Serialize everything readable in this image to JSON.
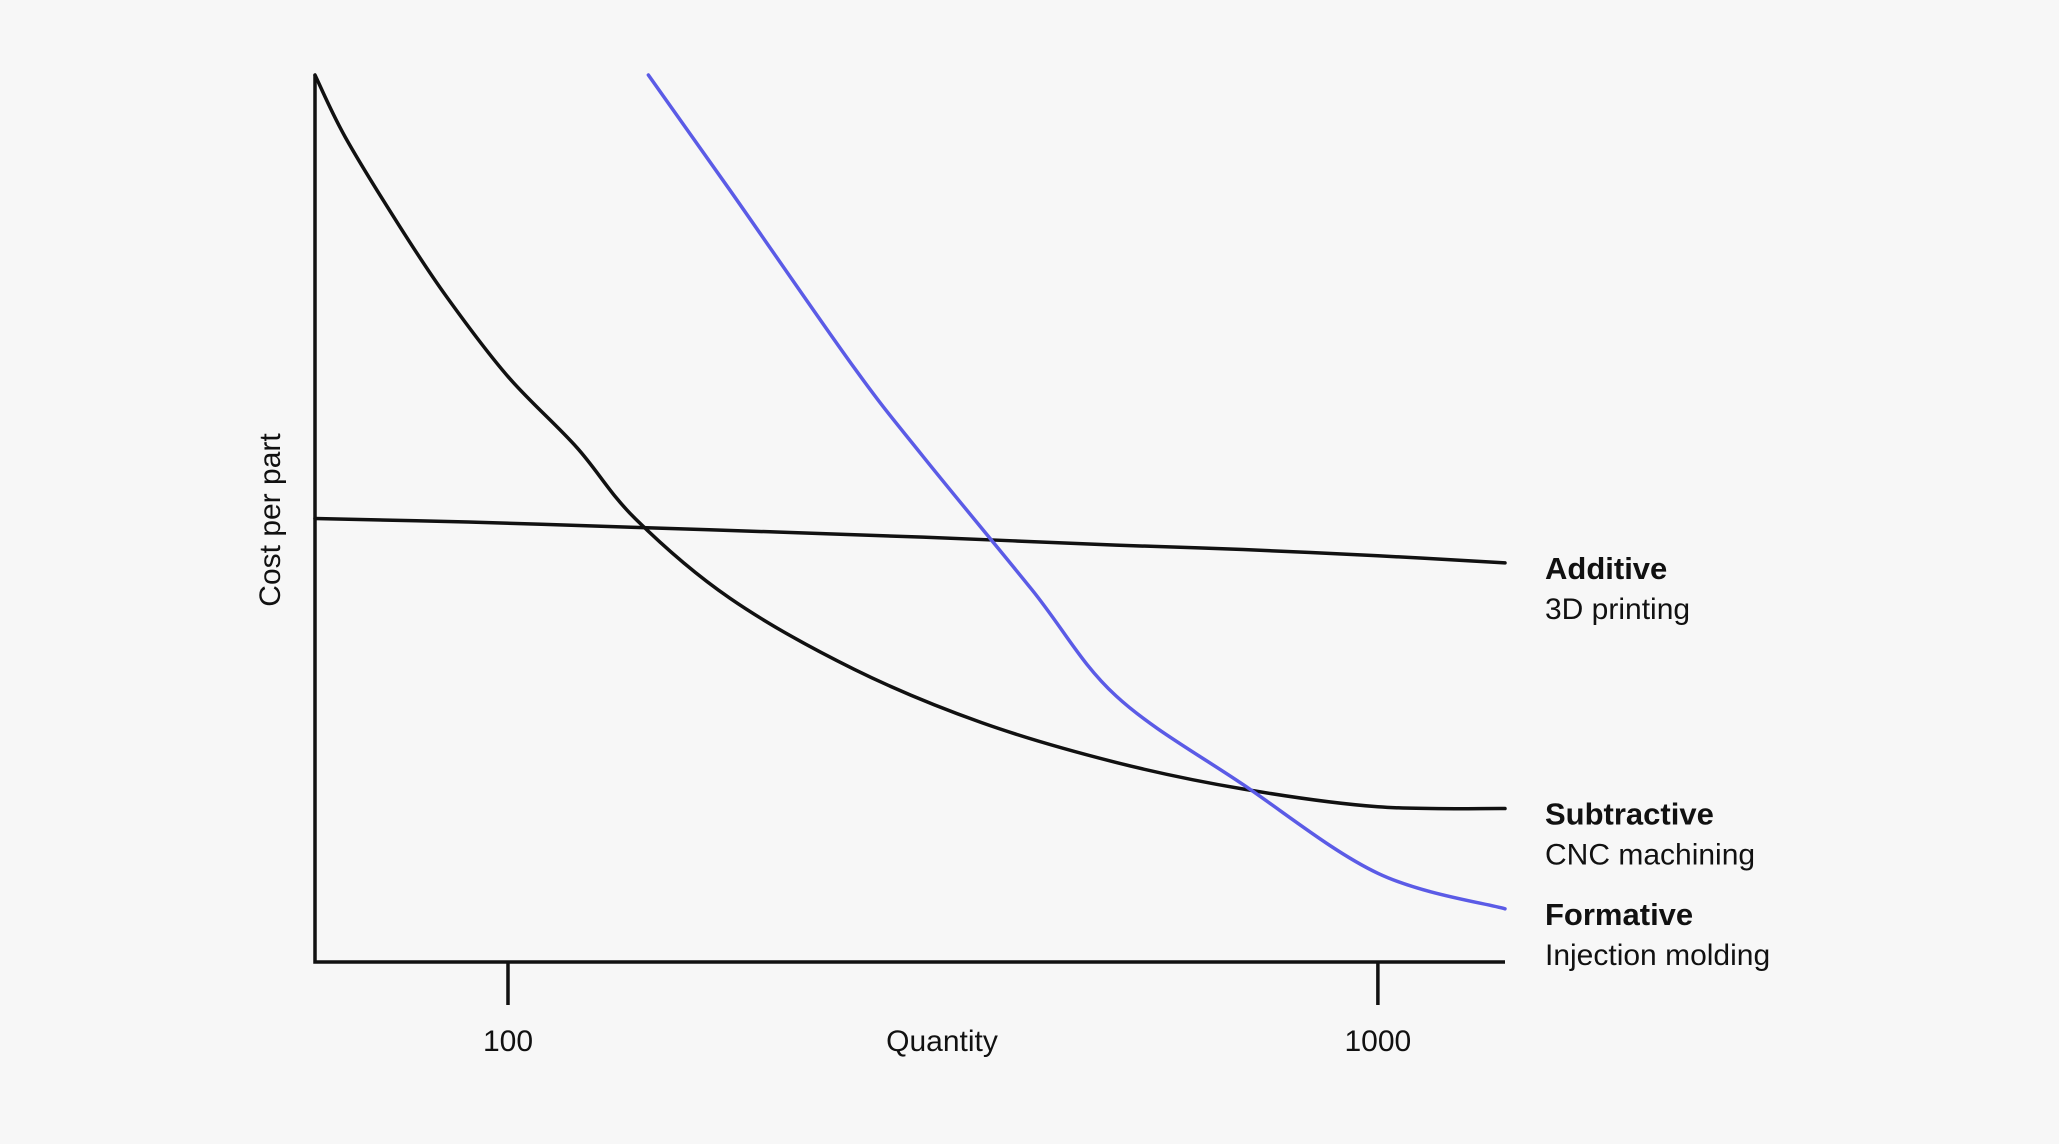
{
  "chart_data": {
    "type": "line",
    "title": "",
    "xlabel": "Quantity",
    "ylabel": "Cost per part",
    "x_scale": "log",
    "xlim": [
      60,
      1400
    ],
    "ylim": [
      0,
      100
    ],
    "xticks": [
      {
        "value": 100,
        "label": "100"
      },
      {
        "value": 1000,
        "label": "1000"
      }
    ],
    "grid": false,
    "legend_position": "right",
    "series": [
      {
        "name": "Additive",
        "description": "3D printing",
        "color": "#111111",
        "x": [
          60,
          90,
          140,
          200,
          300,
          500,
          700,
          1000,
          1400
        ],
        "y": [
          50,
          49.6,
          49.0,
          48.5,
          47.9,
          47.0,
          46.5,
          45.8,
          45.0
        ]
      },
      {
        "name": "Subtractive",
        "description": "CNC machining",
        "color": "#111111",
        "x": [
          60,
          65,
          75,
          85,
          100,
          120,
          140,
          180,
          250,
          350,
          500,
          700,
          1000,
          1400
        ],
        "y": [
          100,
          93,
          83,
          75,
          66,
          58,
          50,
          41,
          33,
          27,
          22.5,
          19.5,
          17.5,
          17.3
        ]
      },
      {
        "name": "Formative",
        "description": "Injection molding",
        "color": "#5b5be6",
        "x": [
          145,
          180,
          250,
          300,
          400,
          500,
          700,
          1000,
          1400
        ],
        "y": [
          100,
          87,
          67,
          57,
          42,
          30,
          20,
          10,
          6
        ]
      }
    ]
  }
}
